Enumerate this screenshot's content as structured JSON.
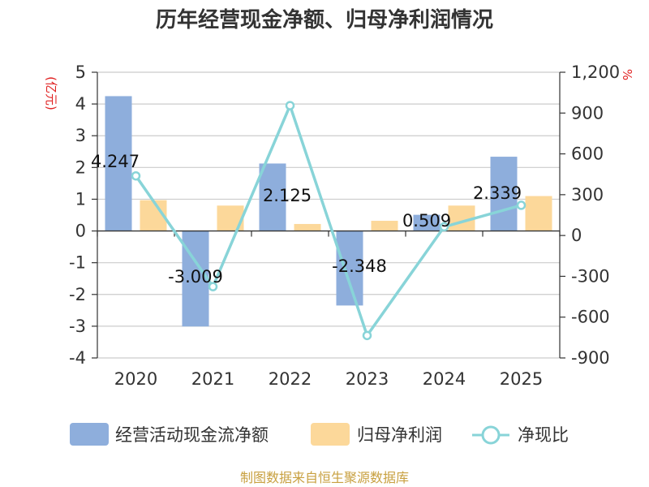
{
  "chart_data": {
    "type": "bar",
    "title": "历年经营现金净额、归母净利润情况",
    "categories": [
      "2020",
      "2021",
      "2022",
      "2023",
      "2024",
      "2025"
    ],
    "left_unit": "(亿元)",
    "right_unit": "%",
    "left_axis": {
      "min": -4,
      "max": 5,
      "ticks": [
        "-4",
        "-3",
        "-2",
        "-1",
        "0",
        "1",
        "2",
        "3",
        "4",
        "5"
      ]
    },
    "right_axis": {
      "min": -900,
      "max": 1200,
      "ticks": [
        "-900",
        "-600",
        "-300",
        "0",
        "300",
        "600",
        "900",
        "1,200"
      ]
    },
    "series": [
      {
        "name": "经营活动现金流净额",
        "type": "bar",
        "axis": "left",
        "color": "#8eaedc",
        "values": [
          4.247,
          -3.009,
          2.125,
          -2.348,
          0.509,
          2.339
        ],
        "labels": [
          "4.247",
          "-3.009",
          "2.125",
          "-2.348",
          "0.509",
          "2.339"
        ]
      },
      {
        "name": "归母净利润",
        "type": "bar",
        "axis": "left",
        "color": "#fcd89a",
        "values": [
          0.97,
          0.8,
          0.22,
          0.32,
          0.8,
          1.1
        ]
      },
      {
        "name": "净现比",
        "type": "line",
        "axis": "right",
        "color": "#88d4d8",
        "values": [
          438,
          -376,
          955,
          -735,
          64,
          222
        ]
      }
    ],
    "grid": true,
    "legend_position": "bottom"
  },
  "footer": {
    "source": "制图数据来自恒生聚源数据库"
  }
}
